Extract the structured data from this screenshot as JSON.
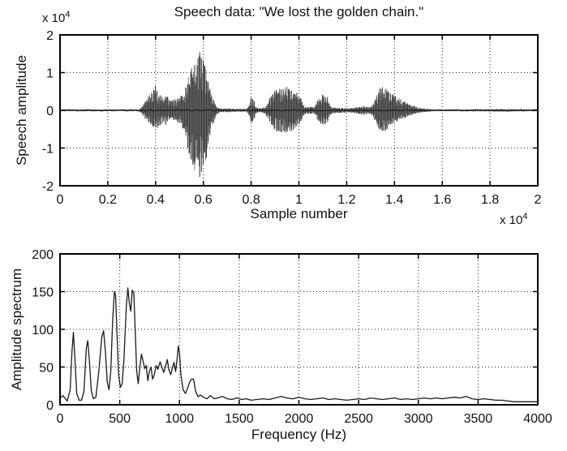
{
  "figure": {
    "background": "#ffffff",
    "line_color": "#1a1a1a",
    "grid_color": "#222222"
  },
  "chart_data": [
    {
      "type": "line",
      "subtype": "speech-waveform",
      "title": "Speech data: \"We lost the golden chain.\"",
      "xlabel": "Sample number",
      "ylabel": "Speech amplitude",
      "x_axis_multiplier": "x 10",
      "x_axis_multiplier_exp": "4",
      "y_axis_multiplier": "x 10",
      "y_axis_multiplier_exp": "4",
      "xlim": [
        0,
        20000
      ],
      "ylim": [
        -20000,
        20000
      ],
      "grid": true,
      "x_ticks": {
        "values": [
          0,
          2000,
          4000,
          6000,
          8000,
          10000,
          12000,
          14000,
          16000,
          18000,
          20000
        ],
        "labels": [
          "0",
          "0.2",
          "0.4",
          "0.6",
          "0.8",
          "1",
          "1.2",
          "1.4",
          "1.6",
          "1.8",
          "2"
        ]
      },
      "y_ticks": {
        "values": [
          -20000,
          -10000,
          0,
          10000,
          20000
        ],
        "labels": [
          "-2",
          "-1",
          "0",
          "1",
          "2"
        ]
      },
      "envelope_points": [
        [
          0,
          250,
          -250
        ],
        [
          3300,
          250,
          -250
        ],
        [
          3430,
          900,
          -900
        ],
        [
          3600,
          3000,
          -2800
        ],
        [
          3800,
          4500,
          -4200
        ],
        [
          4000,
          6800,
          -5000
        ],
        [
          4120,
          4500,
          -4300
        ],
        [
          4300,
          3500,
          -3500
        ],
        [
          4450,
          4200,
          -4000
        ],
        [
          4600,
          2500,
          -2500
        ],
        [
          4800,
          3000,
          -3000
        ],
        [
          5000,
          3500,
          -3500
        ],
        [
          5200,
          5000,
          -5500
        ],
        [
          5400,
          10000,
          -12000
        ],
        [
          5600,
          13000,
          -15500
        ],
        [
          5850,
          15500,
          -19000
        ],
        [
          6000,
          14000,
          -17500
        ],
        [
          6150,
          10000,
          -12000
        ],
        [
          6300,
          5000,
          -6000
        ],
        [
          6450,
          2500,
          -3000
        ],
        [
          6550,
          1000,
          -1200
        ],
        [
          6700,
          500,
          -500
        ],
        [
          7000,
          550,
          -550
        ],
        [
          7200,
          450,
          -450
        ],
        [
          7800,
          350,
          -350
        ],
        [
          7900,
          1000,
          -1000
        ],
        [
          8000,
          3800,
          -3600
        ],
        [
          8100,
          3000,
          -2800
        ],
        [
          8200,
          1000,
          -1000
        ],
        [
          8400,
          450,
          -450
        ],
        [
          8600,
          1000,
          -1000
        ],
        [
          8800,
          3500,
          -3500
        ],
        [
          9000,
          5500,
          -5500
        ],
        [
          9300,
          6000,
          -6000
        ],
        [
          9500,
          6500,
          -6200
        ],
        [
          9700,
          5500,
          -5500
        ],
        [
          9900,
          5000,
          -4800
        ],
        [
          10100,
          3500,
          -3300
        ],
        [
          10200,
          1500,
          -1500
        ],
        [
          10300,
          800,
          -800
        ],
        [
          10500,
          1000,
          -1000
        ],
        [
          10600,
          800,
          -800
        ],
        [
          10700,
          1500,
          -1500
        ],
        [
          10800,
          3000,
          -3000
        ],
        [
          11000,
          4200,
          -4000
        ],
        [
          11200,
          3500,
          -3300
        ],
        [
          11300,
          1500,
          -1500
        ],
        [
          11400,
          800,
          -800
        ],
        [
          11600,
          700,
          -700
        ],
        [
          12000,
          600,
          -600
        ],
        [
          12400,
          800,
          -800
        ],
        [
          12700,
          1200,
          -1200
        ],
        [
          13000,
          900,
          -900
        ],
        [
          13200,
          3000,
          -3000
        ],
        [
          13350,
          5500,
          -5200
        ],
        [
          13500,
          6800,
          -6000
        ],
        [
          13700,
          5500,
          -5000
        ],
        [
          13900,
          4500,
          -4000
        ],
        [
          14100,
          3500,
          -3000
        ],
        [
          14400,
          2500,
          -2200
        ],
        [
          14700,
          1500,
          -1300
        ],
        [
          15000,
          800,
          -700
        ],
        [
          15300,
          450,
          -450
        ],
        [
          15600,
          250,
          -250
        ],
        [
          17000,
          250,
          -250
        ],
        [
          18500,
          350,
          -350
        ],
        [
          20000,
          250,
          -250
        ]
      ]
    },
    {
      "type": "line",
      "subtype": "amplitude-spectrum",
      "title": "",
      "xlabel": "Frequency (Hz)",
      "ylabel": "Amplitude spectrum",
      "xlim": [
        0,
        4000
      ],
      "ylim": [
        0,
        200
      ],
      "grid": true,
      "x_ticks": {
        "values": [
          0,
          500,
          1000,
          1500,
          2000,
          2500,
          3000,
          3500,
          4000
        ],
        "labels": [
          "0",
          "500",
          "1000",
          "1500",
          "2000",
          "2500",
          "3000",
          "3500",
          "4000"
        ]
      },
      "y_ticks": {
        "values": [
          0,
          50,
          100,
          150,
          200
        ],
        "labels": [
          "0",
          "50",
          "100",
          "150",
          "200"
        ]
      },
      "points": [
        [
          0,
          9
        ],
        [
          25,
          12
        ],
        [
          60,
          5
        ],
        [
          85,
          20
        ],
        [
          100,
          70
        ],
        [
          112,
          96
        ],
        [
          125,
          60
        ],
        [
          140,
          15
        ],
        [
          160,
          6
        ],
        [
          180,
          6
        ],
        [
          200,
          18
        ],
        [
          220,
          75
        ],
        [
          232,
          85
        ],
        [
          245,
          60
        ],
        [
          262,
          18
        ],
        [
          280,
          8
        ],
        [
          300,
          10
        ],
        [
          325,
          45
        ],
        [
          350,
          90
        ],
        [
          365,
          98
        ],
        [
          380,
          70
        ],
        [
          395,
          30
        ],
        [
          410,
          20
        ],
        [
          425,
          45
        ],
        [
          440,
          110
        ],
        [
          455,
          150
        ],
        [
          465,
          145
        ],
        [
          478,
          90
        ],
        [
          490,
          40
        ],
        [
          505,
          23
        ],
        [
          520,
          28
        ],
        [
          535,
          60
        ],
        [
          555,
          130
        ],
        [
          568,
          155
        ],
        [
          580,
          135
        ],
        [
          592,
          124
        ],
        [
          605,
          152
        ],
        [
          618,
          148
        ],
        [
          630,
          95
        ],
        [
          642,
          45
        ],
        [
          655,
          28
        ],
        [
          668,
          50
        ],
        [
          682,
          67
        ],
        [
          695,
          58
        ],
        [
          708,
          48
        ],
        [
          722,
          52
        ],
        [
          735,
          32
        ],
        [
          748,
          44
        ],
        [
          762,
          50
        ],
        [
          775,
          34
        ],
        [
          790,
          40
        ],
        [
          805,
          52
        ],
        [
          820,
          47
        ],
        [
          838,
          57
        ],
        [
          852,
          50
        ],
        [
          868,
          43
        ],
        [
          882,
          50
        ],
        [
          898,
          60
        ],
        [
          912,
          46
        ],
        [
          928,
          40
        ],
        [
          942,
          50
        ],
        [
          955,
          56
        ],
        [
          968,
          44
        ],
        [
          980,
          60
        ],
        [
          990,
          78
        ],
        [
          1000,
          68
        ],
        [
          1012,
          40
        ],
        [
          1030,
          20
        ],
        [
          1050,
          15
        ],
        [
          1068,
          22
        ],
        [
          1085,
          30
        ],
        [
          1100,
          34
        ],
        [
          1118,
          34
        ],
        [
          1135,
          18
        ],
        [
          1155,
          11
        ],
        [
          1175,
          13
        ],
        [
          1200,
          10
        ],
        [
          1230,
          8
        ],
        [
          1260,
          12
        ],
        [
          1290,
          8
        ],
        [
          1320,
          9
        ],
        [
          1360,
          11
        ],
        [
          1400,
          8
        ],
        [
          1440,
          7
        ],
        [
          1480,
          9
        ],
        [
          1520,
          7
        ],
        [
          1560,
          8
        ],
        [
          1600,
          6
        ],
        [
          1650,
          7
        ],
        [
          1700,
          8
        ],
        [
          1750,
          7
        ],
        [
          1800,
          9
        ],
        [
          1850,
          11
        ],
        [
          1900,
          9
        ],
        [
          1950,
          8
        ],
        [
          2000,
          10
        ],
        [
          2050,
          8
        ],
        [
          2100,
          7
        ],
        [
          2150,
          8
        ],
        [
          2200,
          9
        ],
        [
          2250,
          7
        ],
        [
          2300,
          8
        ],
        [
          2350,
          7
        ],
        [
          2400,
          6
        ],
        [
          2450,
          7
        ],
        [
          2500,
          8
        ],
        [
          2550,
          7
        ],
        [
          2600,
          9
        ],
        [
          2650,
          8
        ],
        [
          2700,
          7
        ],
        [
          2750,
          8
        ],
        [
          2800,
          9
        ],
        [
          2850,
          7
        ],
        [
          2900,
          8
        ],
        [
          2950,
          7
        ],
        [
          3000,
          8
        ],
        [
          3050,
          9
        ],
        [
          3100,
          8
        ],
        [
          3150,
          9
        ],
        [
          3200,
          8
        ],
        [
          3250,
          9
        ],
        [
          3300,
          10
        ],
        [
          3350,
          9
        ],
        [
          3400,
          11
        ],
        [
          3450,
          8
        ],
        [
          3500,
          7
        ],
        [
          3550,
          8
        ],
        [
          3600,
          7
        ],
        [
          3650,
          6
        ],
        [
          3700,
          6
        ],
        [
          3750,
          5
        ],
        [
          3800,
          4
        ],
        [
          3850,
          4
        ],
        [
          3900,
          4
        ],
        [
          3950,
          4
        ],
        [
          4000,
          4
        ]
      ]
    }
  ]
}
